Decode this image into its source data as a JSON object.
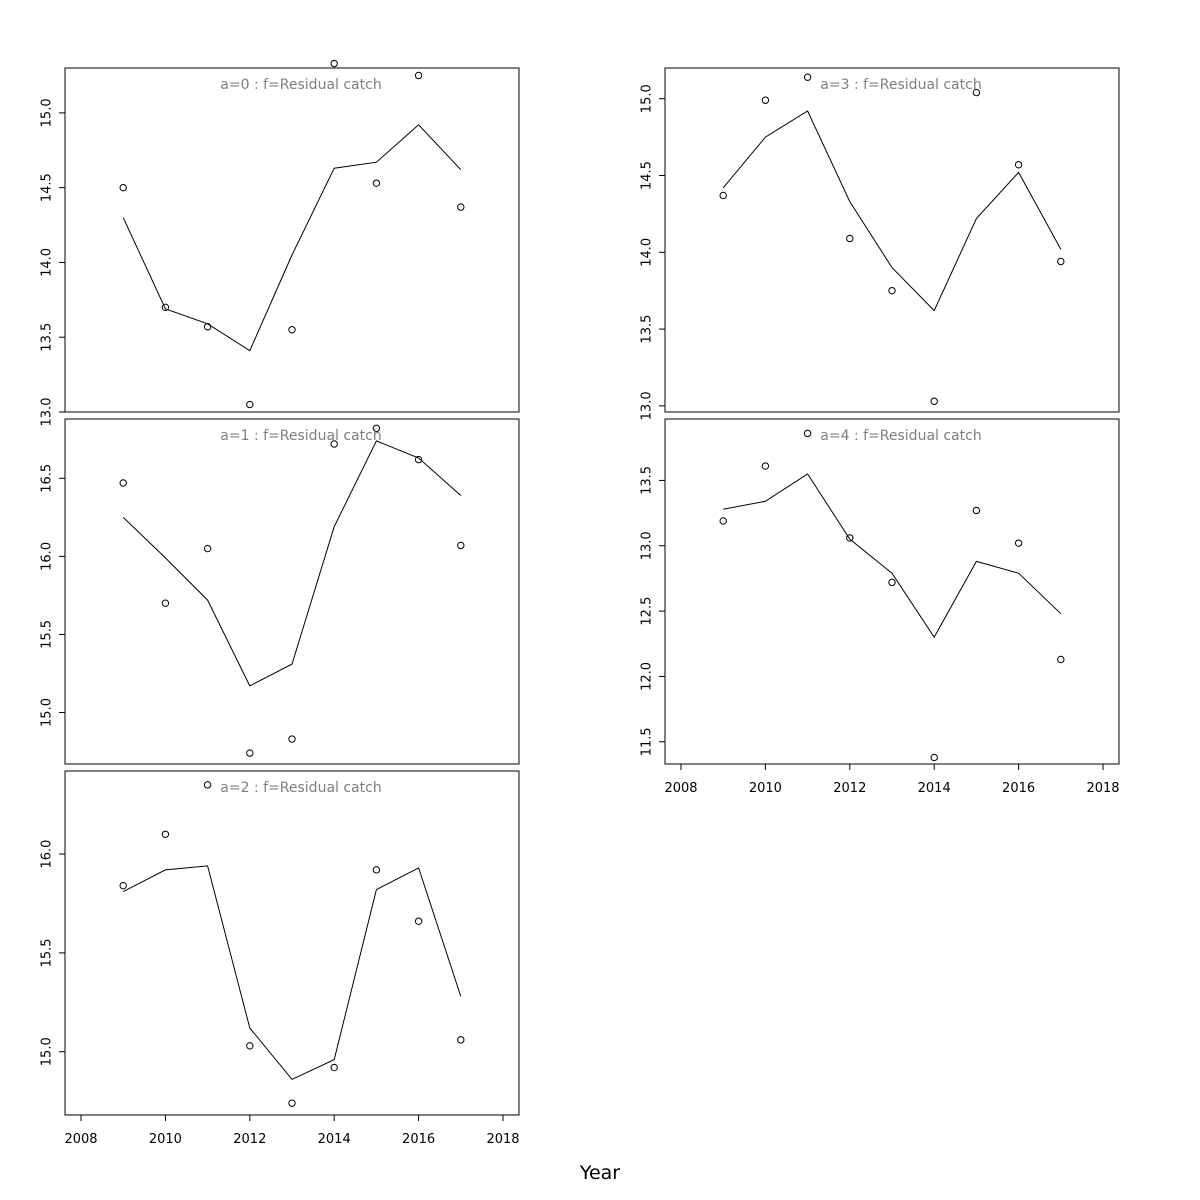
{
  "figure": {
    "xlabel": "Year",
    "x_ticks": [
      2008,
      2010,
      2012,
      2014,
      2016,
      2018
    ],
    "xlim": [
      2008,
      2018
    ],
    "line_color": "#000000",
    "point_color": "#000000",
    "title_color": "#7f7f7f"
  },
  "chart_data": [
    {
      "type": "line",
      "title": "a=0  :  f=Residual catch",
      "ylim": [
        13.0,
        15.3
      ],
      "y_ticks": [
        "13.0",
        "13.5",
        "14.0",
        "14.5",
        "15.0"
      ],
      "x": [
        2009,
        2010,
        2011,
        2012,
        2013,
        2014,
        2015,
        2016,
        2017
      ],
      "series": [
        {
          "kind": "points",
          "values": [
            14.5,
            13.7,
            13.57,
            13.05,
            13.55,
            15.33,
            14.53,
            15.25,
            14.37
          ]
        },
        {
          "kind": "line",
          "values": [
            14.3,
            13.69,
            13.59,
            13.41,
            14.05,
            14.63,
            14.67,
            14.92,
            14.62
          ]
        }
      ]
    },
    {
      "type": "line",
      "title": "a=1  :  f=Residual catch",
      "ylim": [
        14.67,
        16.88
      ],
      "y_ticks": [
        "15.0",
        "15.5",
        "16.0",
        "16.5"
      ],
      "x": [
        2009,
        2010,
        2011,
        2012,
        2013,
        2014,
        2015,
        2016,
        2017
      ],
      "series": [
        {
          "kind": "points",
          "values": [
            16.47,
            15.7,
            16.05,
            14.74,
            14.83,
            16.72,
            16.82,
            16.62,
            16.07
          ]
        },
        {
          "kind": "line",
          "values": [
            16.25,
            15.99,
            15.72,
            15.17,
            15.31,
            16.19,
            16.74,
            16.63,
            16.39
          ]
        }
      ]
    },
    {
      "type": "line",
      "title": "a=2  :  f=Residual catch",
      "ylim": [
        14.68,
        16.42
      ],
      "y_ticks": [
        "15.0",
        "15.5",
        "16.0"
      ],
      "x": [
        2009,
        2010,
        2011,
        2012,
        2013,
        2014,
        2015,
        2016,
        2017
      ],
      "series": [
        {
          "kind": "points",
          "values": [
            15.84,
            16.1,
            16.35,
            15.03,
            14.74,
            14.92,
            15.92,
            15.66,
            15.06
          ]
        },
        {
          "kind": "line",
          "values": [
            15.81,
            15.92,
            15.94,
            15.12,
            14.86,
            14.96,
            15.82,
            15.93,
            15.28
          ]
        }
      ]
    },
    {
      "type": "line",
      "title": "a=3  :  f=Residual catch",
      "ylim": [
        12.96,
        15.2
      ],
      "y_ticks": [
        "13.0",
        "13.5",
        "14.0",
        "14.5",
        "15.0"
      ],
      "x": [
        2009,
        2010,
        2011,
        2012,
        2013,
        2014,
        2015,
        2016,
        2017
      ],
      "series": [
        {
          "kind": "points",
          "values": [
            14.37,
            14.99,
            15.14,
            14.09,
            13.75,
            13.03,
            15.04,
            14.57,
            13.94
          ]
        },
        {
          "kind": "line",
          "values": [
            14.42,
            14.75,
            14.92,
            14.33,
            13.9,
            13.62,
            14.22,
            14.52,
            14.02
          ]
        }
      ]
    },
    {
      "type": "line",
      "title": "a=4  :  f=Residual catch",
      "ylim": [
        11.33,
        13.97
      ],
      "y_ticks": [
        "11.5",
        "12.0",
        "12.5",
        "13.0",
        "13.5"
      ],
      "x": [
        2009,
        2010,
        2011,
        2012,
        2013,
        2014,
        2015,
        2016,
        2017
      ],
      "series": [
        {
          "kind": "points",
          "values": [
            13.19,
            13.61,
            13.86,
            13.06,
            12.72,
            11.38,
            13.27,
            13.02,
            12.13
          ]
        },
        {
          "kind": "line",
          "values": [
            13.28,
            13.34,
            13.55,
            13.05,
            12.79,
            12.3,
            12.88,
            12.79,
            12.48
          ]
        }
      ]
    }
  ]
}
